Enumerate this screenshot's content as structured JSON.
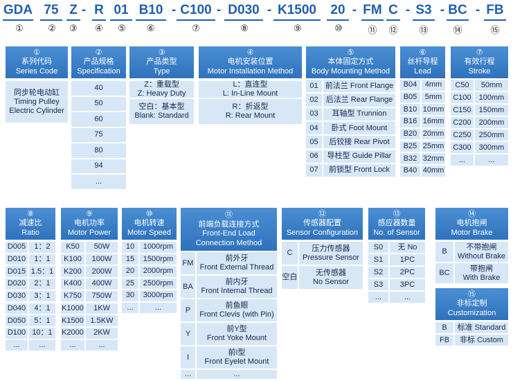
{
  "code": [
    "GDA",
    "75",
    "Z",
    "-",
    "R",
    "01",
    "B10",
    "-",
    "C100",
    "-",
    "D030",
    "-",
    "K1500",
    "20",
    "-",
    "FM",
    "C",
    "-",
    "S3",
    "-",
    "BC",
    "-",
    "FB"
  ],
  "code_numbers": [
    "①",
    "②",
    "③",
    "④",
    "⑤",
    "⑥",
    "⑦",
    "⑧",
    "⑨",
    "⑩",
    "⑪",
    "⑫",
    "⑬",
    "⑭",
    "⑮"
  ],
  "tables": [
    {
      "num": "①",
      "title": [
        "系列代码",
        "Series Code"
      ],
      "rows": [
        [
          [
            "同步轮电动缸",
            "Timing Pulley",
            "Electric Cylinder"
          ]
        ]
      ]
    },
    {
      "num": "②",
      "title": [
        "产品规格",
        "Specification"
      ],
      "rows": [
        [
          "40"
        ],
        [
          "50"
        ],
        [
          "60"
        ],
        [
          "75"
        ],
        [
          "80"
        ],
        [
          "94"
        ],
        [
          "..."
        ]
      ]
    },
    {
      "num": "③",
      "title": [
        "产品类型",
        "Type"
      ],
      "rows": [
        [
          [
            "Z：重载型",
            "Z: Heavy Duty"
          ]
        ],
        [
          [
            "空白：基本型",
            "Blank: Standard"
          ]
        ]
      ]
    },
    {
      "num": "④",
      "title": [
        "电机安装位置",
        "Motor Installation Method"
      ],
      "rows": [
        [
          [
            "L：直连型",
            "L: In-Line Mount"
          ]
        ],
        [
          [
            "R：折返型",
            "R: Rear Mount"
          ]
        ]
      ]
    },
    {
      "num": "⑤",
      "title": [
        "本体固定方式",
        "Body Mounting Method"
      ],
      "rows": [
        [
          "01",
          "前法兰 Front Flange"
        ],
        [
          "02",
          "后法兰 Rear Flange"
        ],
        [
          "03",
          "耳轴型 Trunnion"
        ],
        [
          "04",
          "卧式 Foot Mount"
        ],
        [
          "05",
          "后铰接 Rear Pivot"
        ],
        [
          "06",
          "导柱型 Guide Pillar"
        ],
        [
          "07",
          "前锁型 Front Lock"
        ]
      ]
    },
    {
      "num": "⑥",
      "title": [
        "丝杆导程",
        "Lead"
      ],
      "rows": [
        [
          "B04",
          "4mm"
        ],
        [
          "B05",
          "5mm"
        ],
        [
          "B10",
          "10mm"
        ],
        [
          "B16",
          "16mm"
        ],
        [
          "B20",
          "20mm"
        ],
        [
          "B25",
          "25mm"
        ],
        [
          "B32",
          "32mm"
        ],
        [
          "B40",
          "40mm"
        ]
      ]
    },
    {
      "num": "⑦",
      "title": [
        "有效行程",
        "Stroke"
      ],
      "rows": [
        [
          "C50",
          "50mm"
        ],
        [
          "C100",
          "100mm"
        ],
        [
          "C150",
          "150mm"
        ],
        [
          "C200",
          "200mm"
        ],
        [
          "C250",
          "250mm"
        ],
        [
          "C300",
          "300mm"
        ],
        [
          "...",
          "..."
        ]
      ]
    },
    {
      "num": "⑧",
      "title": [
        "减速比",
        "Ratio"
      ],
      "rows": [
        [
          "D005",
          "1：2"
        ],
        [
          "D010",
          "1：1"
        ],
        [
          "D015",
          "1.5：1"
        ],
        [
          "D020",
          "2：1"
        ],
        [
          "D030",
          "3：1"
        ],
        [
          "D040",
          "4：1"
        ],
        [
          "D050",
          "5：1"
        ],
        [
          "D100",
          "10：1"
        ],
        [
          "...",
          "..."
        ]
      ]
    },
    {
      "num": "⑨",
      "title": [
        "电机功率",
        "Motor Power"
      ],
      "rows": [
        [
          "K50",
          "50W"
        ],
        [
          "K100",
          "100W"
        ],
        [
          "K200",
          "200W"
        ],
        [
          "K400",
          "400W"
        ],
        [
          "K750",
          "750W"
        ],
        [
          "K1000",
          "1KW"
        ],
        [
          "K1500",
          "1.5KW"
        ],
        [
          "K2000",
          "2KW"
        ],
        [
          "...",
          "..."
        ]
      ]
    },
    {
      "num": "⑩",
      "title": [
        "电机转速",
        "Motor Speed"
      ],
      "rows": [
        [
          "10",
          "1000rpm"
        ],
        [
          "15",
          "1500rpm"
        ],
        [
          "20",
          "2000rpm"
        ],
        [
          "25",
          "2500rpm"
        ],
        [
          "30",
          "3000rpm"
        ],
        [
          "...",
          "..."
        ]
      ]
    },
    {
      "num": "⑪",
      "title": [
        "前端负载连接方式",
        "Front-End Load",
        "Connection Method"
      ],
      "rows": [
        [
          "FM",
          [
            "前外牙",
            "Front External Thread"
          ]
        ],
        [
          "BA",
          [
            "前内牙",
            "Front Internal Thread"
          ]
        ],
        [
          "P",
          [
            "前鱼眼",
            "Front Clevis (with Pin)"
          ]
        ],
        [
          "Y",
          [
            "前Y型",
            "Front Yoke Mount"
          ]
        ],
        [
          "I",
          [
            "前I型",
            "Front Eyelet Mount"
          ]
        ],
        [
          "...",
          "..."
        ]
      ]
    },
    {
      "num": "⑫",
      "title": [
        "传感器配置",
        "Sensor Configuration"
      ],
      "rows": [
        [
          "C",
          [
            "压力传感器",
            "Pressure Sensor"
          ]
        ],
        [
          "空白",
          [
            "无传感器",
            "No Sensor"
          ]
        ]
      ]
    },
    {
      "num": "⑬",
      "title": [
        "感应器数量",
        "No. of Sensor"
      ],
      "rows": [
        [
          "S0",
          "无 No"
        ],
        [
          "S1",
          "1PC"
        ],
        [
          "S2",
          "2PC"
        ],
        [
          "S3",
          "3PC"
        ],
        [
          "...",
          "..."
        ]
      ]
    },
    {
      "num": "⑭",
      "title": [
        "电机抱闸",
        "Motor Brake"
      ],
      "rows": [
        [
          "B",
          [
            "不带抱闸",
            "Without Brake"
          ]
        ],
        [
          "BC",
          [
            "带抱闸",
            "With Brake"
          ]
        ]
      ]
    },
    {
      "num": "⑮",
      "title": [
        "非标定制",
        "Customization"
      ],
      "rows": [
        [
          "B",
          "标准 Standard"
        ],
        [
          "FB",
          "非标 Custom"
        ]
      ]
    }
  ]
}
